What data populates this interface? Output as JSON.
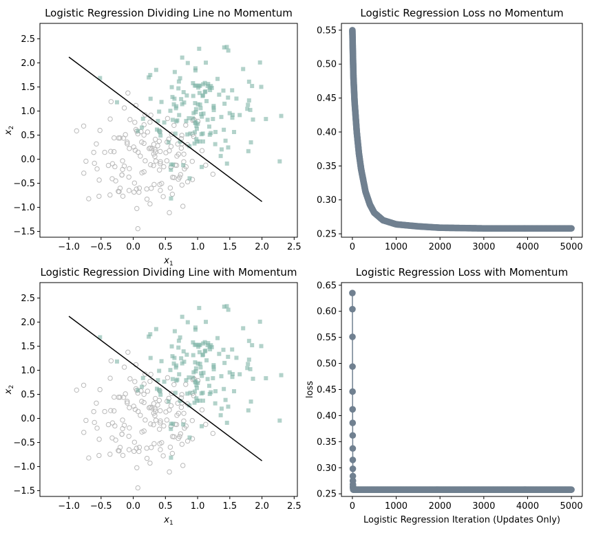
{
  "chart_data": [
    {
      "type": "scatter",
      "title": "Logistic Regression Dividing Line no Momentum",
      "xlabel": "x1",
      "ylabel": "x2",
      "xlim": [
        -1.45,
        2.55
      ],
      "ylim": [
        -1.62,
        2.82
      ],
      "xticks": [
        -1.0,
        -0.5,
        0.0,
        0.5,
        1.0,
        1.5,
        2.0,
        2.5
      ],
      "yticks": [
        -1.5,
        -1.0,
        -0.5,
        0.0,
        0.5,
        1.0,
        1.5,
        2.0,
        2.5
      ],
      "xtick_labels": [
        "−1.0",
        "−0.5",
        "0.0",
        "0.5",
        "1.0",
        "1.5",
        "2.0",
        "2.5"
      ],
      "ytick_labels": [
        "−1.5",
        "−1.0",
        "−0.5",
        "0.0",
        "0.5",
        "1.0",
        "1.5",
        "2.0",
        "2.5"
      ],
      "series": [
        {
          "marker": "circle",
          "color": "#b9b9b9"
        },
        {
          "marker": "square",
          "color": "#7fb4a6"
        },
        {
          "marker": "line",
          "color": "#000000",
          "x": [
            -1.0,
            2.0
          ],
          "y": [
            2.12,
            -0.88
          ]
        }
      ]
    },
    {
      "type": "line",
      "title": "Logistic Regression Loss no Momentum",
      "xlabel": "",
      "ylabel": "",
      "xlim": [
        -250,
        5250
      ],
      "ylim": [
        0.245,
        0.56
      ],
      "xticks": [
        0,
        1000,
        2000,
        3000,
        4000,
        5000
      ],
      "yticks": [
        0.25,
        0.3,
        0.35,
        0.4,
        0.45,
        0.5,
        0.55
      ],
      "xtick_labels": [
        "0",
        "1000",
        "2000",
        "3000",
        "4000",
        "5000"
      ],
      "ytick_labels": [
        "0.25",
        "0.30",
        "0.35",
        "0.40",
        "0.45",
        "0.50",
        "0.55"
      ],
      "series": [
        {
          "color": "#708090",
          "x": [
            0,
            10,
            25,
            50,
            100,
            150,
            200,
            300,
            400,
            500,
            700,
            1000,
            1500,
            2000,
            3000,
            4000,
            5000
          ],
          "y": [
            0.55,
            0.52,
            0.48,
            0.445,
            0.4,
            0.368,
            0.345,
            0.312,
            0.293,
            0.281,
            0.27,
            0.264,
            0.261,
            0.259,
            0.258,
            0.258,
            0.258
          ]
        }
      ]
    },
    {
      "type": "scatter",
      "title": "Logistic Regression Dividing Line with Momentum",
      "xlabel": "x1",
      "ylabel": "x2",
      "xlim": [
        -1.45,
        2.55
      ],
      "ylim": [
        -1.62,
        2.82
      ],
      "xticks": [
        -1.0,
        -0.5,
        0.0,
        0.5,
        1.0,
        1.5,
        2.0,
        2.5
      ],
      "yticks": [
        -1.5,
        -1.0,
        -0.5,
        0.0,
        0.5,
        1.0,
        1.5,
        2.0,
        2.5
      ],
      "xtick_labels": [
        "−1.0",
        "−0.5",
        "0.0",
        "0.5",
        "1.0",
        "1.5",
        "2.0",
        "2.5"
      ],
      "ytick_labels": [
        "−1.5",
        "−1.0",
        "−0.5",
        "0.0",
        "0.5",
        "1.0",
        "1.5",
        "2.0",
        "2.5"
      ],
      "series": [
        {
          "marker": "circle",
          "color": "#b9b9b9"
        },
        {
          "marker": "square",
          "color": "#7fb4a6"
        },
        {
          "marker": "line",
          "color": "#000000",
          "x": [
            -1.0,
            2.0
          ],
          "y": [
            2.12,
            -0.88
          ]
        }
      ]
    },
    {
      "type": "line",
      "title": "Logistic Regression Loss with Momentum",
      "xlabel": "Logistic Regression Iteration (Updates Only)",
      "ylabel": "loss",
      "xlim": [
        -250,
        5250
      ],
      "ylim": [
        0.245,
        0.655
      ],
      "xticks": [
        0,
        1000,
        2000,
        3000,
        4000,
        5000
      ],
      "yticks": [
        0.25,
        0.3,
        0.35,
        0.4,
        0.45,
        0.5,
        0.55,
        0.6,
        0.65
      ],
      "xtick_labels": [
        "0",
        "1000",
        "2000",
        "3000",
        "4000",
        "5000"
      ],
      "ytick_labels": [
        "0.25",
        "0.30",
        "0.35",
        "0.40",
        "0.45",
        "0.50",
        "0.55",
        "0.60",
        "0.65"
      ],
      "series": [
        {
          "color": "#708090",
          "x": [
            0,
            1,
            2,
            3,
            4,
            5,
            6,
            7,
            8,
            9,
            10,
            11,
            12,
            13,
            14,
            15,
            16,
            20,
            30,
            50,
            100,
            200,
            500,
            1000,
            2000,
            3000,
            4000,
            5000
          ],
          "y": [
            0.635,
            0.604,
            0.551,
            0.494,
            0.446,
            0.412,
            0.386,
            0.362,
            0.337,
            0.315,
            0.298,
            0.284,
            0.275,
            0.268,
            0.264,
            0.262,
            0.261,
            0.26,
            0.259,
            0.258,
            0.258,
            0.258,
            0.258,
            0.258,
            0.258,
            0.258,
            0.258,
            0.258
          ]
        }
      ]
    }
  ]
}
